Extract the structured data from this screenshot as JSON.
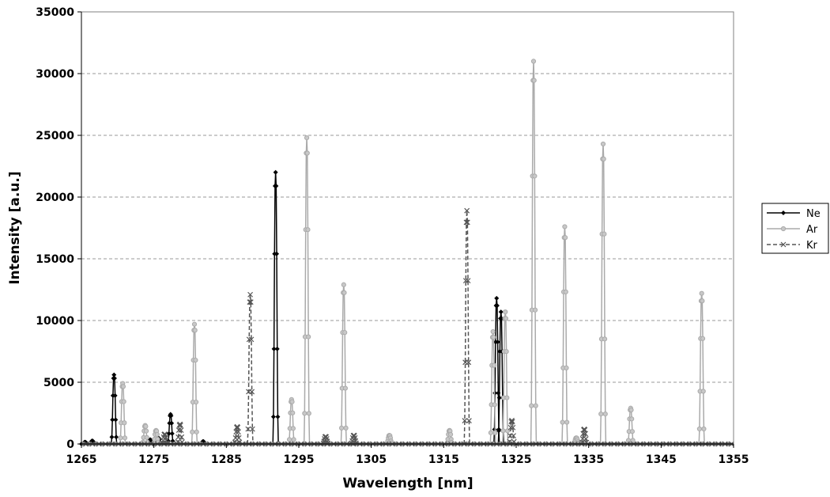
{
  "chart_data": {
    "type": "line",
    "title": "",
    "xlabel": "Wavelength [nm]",
    "ylabel": "Intensity [a.u.]",
    "xlim": [
      1265,
      1355
    ],
    "ylim": [
      0,
      35000
    ],
    "xticks": [
      1265,
      1275,
      1285,
      1295,
      1305,
      1315,
      1325,
      1335,
      1345,
      1355
    ],
    "yticks": [
      0,
      5000,
      10000,
      15000,
      20000,
      25000,
      30000,
      35000
    ],
    "grid": "horizontal dashed",
    "legend": "right",
    "series": [
      {
        "name": "Ne",
        "color": "#000000",
        "dash": "solid",
        "marker": "diamond",
        "peaks": [
          [
            1265.5,
            150
          ],
          [
            1266.5,
            250
          ],
          [
            1269.5,
            5600
          ],
          [
            1274.5,
            350
          ],
          [
            1275.6,
            500
          ],
          [
            1277.3,
            2400
          ],
          [
            1281.8,
            200
          ],
          [
            1291.8,
            22000
          ],
          [
            1322.3,
            11800
          ],
          [
            1322.9,
            10700
          ]
        ]
      },
      {
        "name": "Ar",
        "color": "#aaaaaa",
        "dash": "solid",
        "marker": "circle",
        "peaks": [
          [
            1270.7,
            4900
          ],
          [
            1273.8,
            1500
          ],
          [
            1275.3,
            1100
          ],
          [
            1280.6,
            9700
          ],
          [
            1294.0,
            3600
          ],
          [
            1296.1,
            24800
          ],
          [
            1301.2,
            12900
          ],
          [
            1307.5,
            700
          ],
          [
            1315.8,
            1100
          ],
          [
            1321.8,
            9100
          ],
          [
            1323.5,
            10700
          ],
          [
            1327.4,
            31000
          ],
          [
            1331.7,
            17600
          ],
          [
            1333.3,
            500
          ],
          [
            1337.0,
            24300
          ],
          [
            1340.8,
            2900
          ],
          [
            1350.6,
            12200
          ]
        ]
      },
      {
        "name": "Kr",
        "color": "#555555",
        "dash": "dashed",
        "marker": "cross",
        "peaks": [
          [
            1276.5,
            800
          ],
          [
            1278.6,
            1600
          ],
          [
            1286.5,
            1400
          ],
          [
            1288.3,
            12100
          ],
          [
            1298.7,
            600
          ],
          [
            1302.6,
            700
          ],
          [
            1318.2,
            18900
          ],
          [
            1324.4,
            1900
          ],
          [
            1334.4,
            1200
          ]
        ]
      }
    ]
  }
}
